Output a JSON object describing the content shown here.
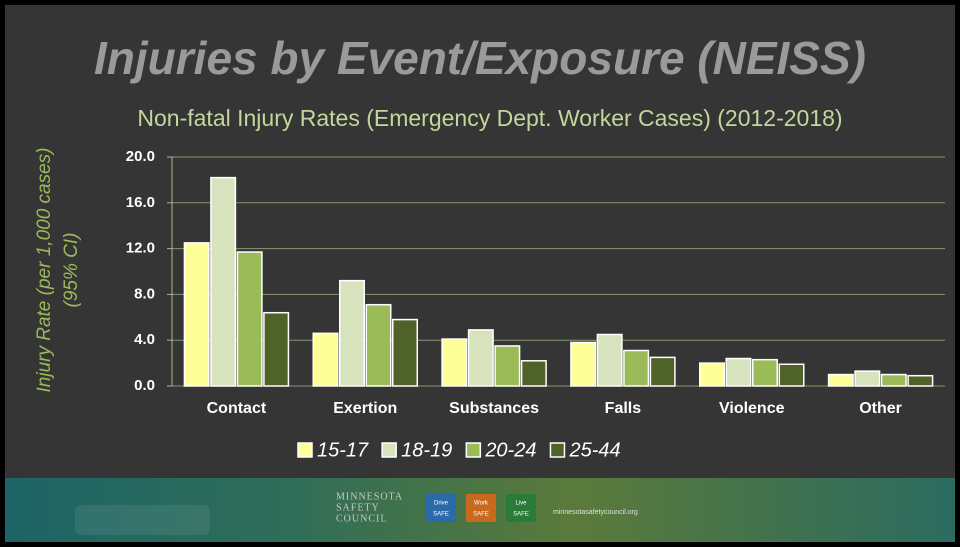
{
  "chart_data": {
    "type": "bar",
    "title": "Injuries by Event/Exposure (NEISS)",
    "subtitle": "Non-fatal Injury Rates (Emergency Dept. Worker Cases) (2012-2018)",
    "y_label": [
      "Injury Rate (per 1,000 cases)",
      "(95% CI)"
    ],
    "categories": [
      "Contact",
      "Exertion",
      "Substances",
      "Falls",
      "Violence",
      "Other"
    ],
    "series": [
      {
        "name": "15-17",
        "color": "#ffff99",
        "values": [
          12.5,
          4.6,
          4.1,
          3.8,
          2.0,
          1.0
        ]
      },
      {
        "name": "18-19",
        "color": "#d6e3bc",
        "values": [
          18.2,
          9.2,
          4.9,
          4.5,
          2.4,
          1.3
        ]
      },
      {
        "name": "20-24",
        "color": "#9bbb59",
        "values": [
          11.7,
          7.1,
          3.5,
          3.1,
          2.3,
          1.0
        ]
      },
      {
        "name": "25-44",
        "color": "#4f6228",
        "values": [
          6.4,
          5.8,
          2.2,
          2.5,
          1.9,
          0.9
        ]
      }
    ],
    "ylim": [
      0,
      20
    ],
    "yticks": [
      {
        "value": 0,
        "label": "0.0"
      },
      {
        "value": 4,
        "label": "4.0"
      },
      {
        "value": 8,
        "label": "8.0"
      },
      {
        "value": 12,
        "label": "12.0"
      },
      {
        "value": 16,
        "label": "16.0"
      },
      {
        "value": 20,
        "label": "20.0"
      }
    ],
    "grid": true,
    "legend": "bottom"
  },
  "footer": {
    "org": [
      "MINNESOTA",
      "SAFETY",
      "COUNCIL"
    ],
    "badges": [
      [
        "Drive",
        "SAFE"
      ],
      [
        "Work",
        "SAFE"
      ],
      [
        "Live",
        "SAFE"
      ]
    ],
    "url": "minnesotasafetycouncil.org"
  }
}
